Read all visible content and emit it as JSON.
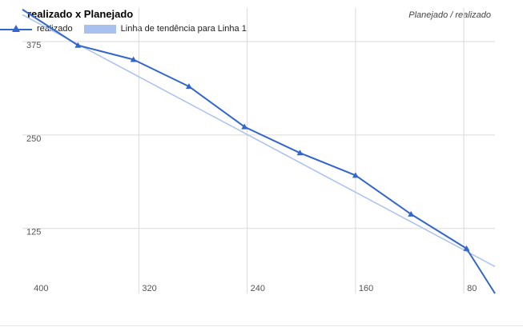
{
  "chart_data": {
    "type": "line",
    "title": "realizado x Planejado",
    "subtitle": "Planejado / realizado",
    "xlabel": "",
    "ylabel": "",
    "x_reversed": true,
    "xlim": [
      406,
      57
    ],
    "ylim": [
      38,
      420
    ],
    "grid": true,
    "legend_position": "top-left",
    "x_ticks": [
      400,
      320,
      240,
      160,
      80
    ],
    "y_ticks": [
      375,
      250,
      125
    ],
    "series": [
      {
        "name": "realizado",
        "color": "#3366cc",
        "marker": "triangle",
        "x": [
          406,
          365,
          324,
          283,
          242,
          201,
          160,
          119,
          78,
          57
        ],
        "y": [
          418,
          370,
          351,
          315,
          261,
          226,
          196,
          144,
          98,
          38
        ]
      },
      {
        "name": "Linha de tendência para Linha 1",
        "color": "#a9c1ee",
        "type": "trendline",
        "x": [
          406,
          57
        ],
        "y": [
          411,
          74
        ]
      }
    ]
  }
}
